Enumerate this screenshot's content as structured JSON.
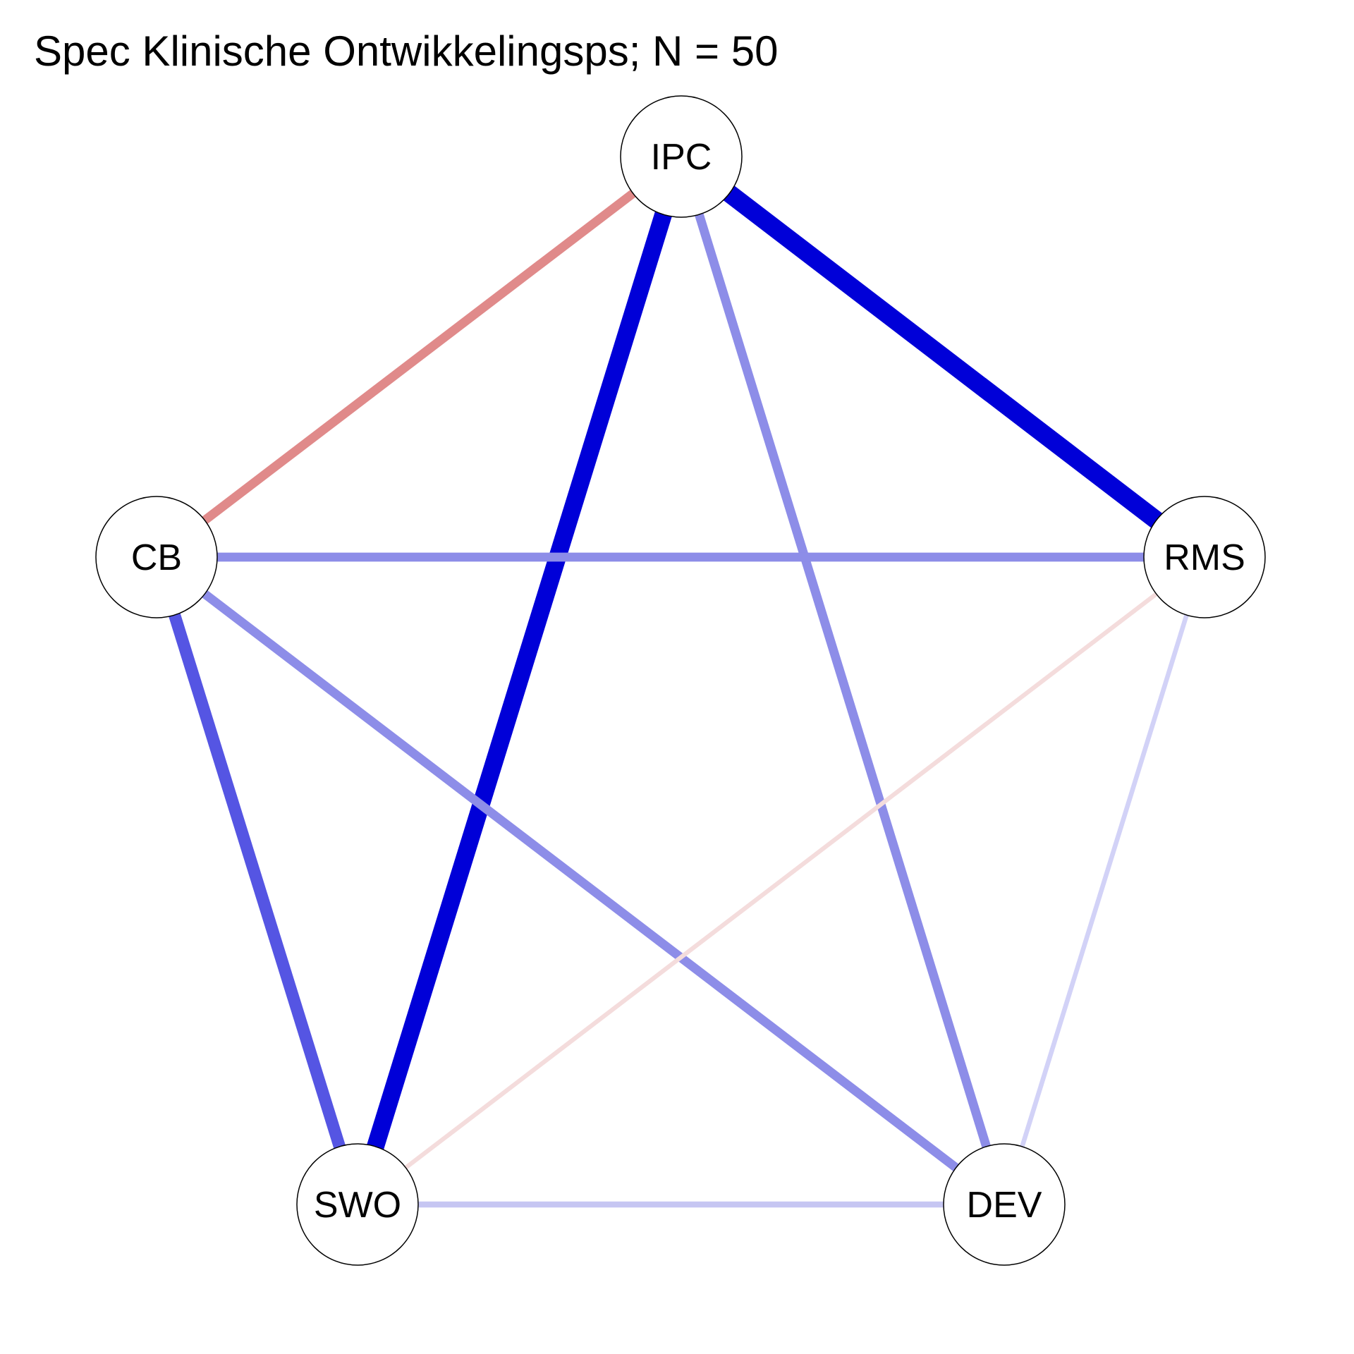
{
  "title": "Spec Klinische Ontwikkelingsps; N = 50",
  "colors": {
    "strong_positive": "#0000d8",
    "medium_positive": "#5555e3",
    "weak_positive": "#8d8de8",
    "faint_positive": "#c6c6f2",
    "very_faint_positive": "#d2d2f7",
    "negative": "#e08a8a",
    "faint_negative": "#f4dcdc"
  },
  "nodes": [
    {
      "id": "IPC",
      "label": "IPC"
    },
    {
      "id": "RMS",
      "label": "RMS"
    },
    {
      "id": "DEV",
      "label": "DEV"
    },
    {
      "id": "SWO",
      "label": "SWO"
    },
    {
      "id": "CB",
      "label": "CB"
    }
  ],
  "edges": [
    {
      "from": "IPC",
      "to": "RMS",
      "sign": "positive",
      "strength": 1.0,
      "color": "#0000d8"
    },
    {
      "from": "IPC",
      "to": "SWO",
      "sign": "positive",
      "strength": 0.95,
      "color": "#0000d8"
    },
    {
      "from": "CB",
      "to": "SWO",
      "sign": "positive",
      "strength": 0.6,
      "color": "#5555e3"
    },
    {
      "from": "IPC",
      "to": "DEV",
      "sign": "positive",
      "strength": 0.4,
      "color": "#8d8de8"
    },
    {
      "from": "CB",
      "to": "RMS",
      "sign": "positive",
      "strength": 0.4,
      "color": "#8d8de8"
    },
    {
      "from": "CB",
      "to": "DEV",
      "sign": "positive",
      "strength": 0.4,
      "color": "#8d8de8"
    },
    {
      "from": "IPC",
      "to": "CB",
      "sign": "negative",
      "strength": 0.4,
      "color": "#e08a8a"
    },
    {
      "from": "SWO",
      "to": "DEV",
      "sign": "positive",
      "strength": 0.2,
      "color": "#c6c6f2"
    },
    {
      "from": "RMS",
      "to": "DEV",
      "sign": "positive",
      "strength": 0.12,
      "color": "#d2d2f7"
    },
    {
      "from": "RMS",
      "to": "SWO",
      "sign": "negative",
      "strength": 0.1,
      "color": "#f4dcdc"
    }
  ]
}
